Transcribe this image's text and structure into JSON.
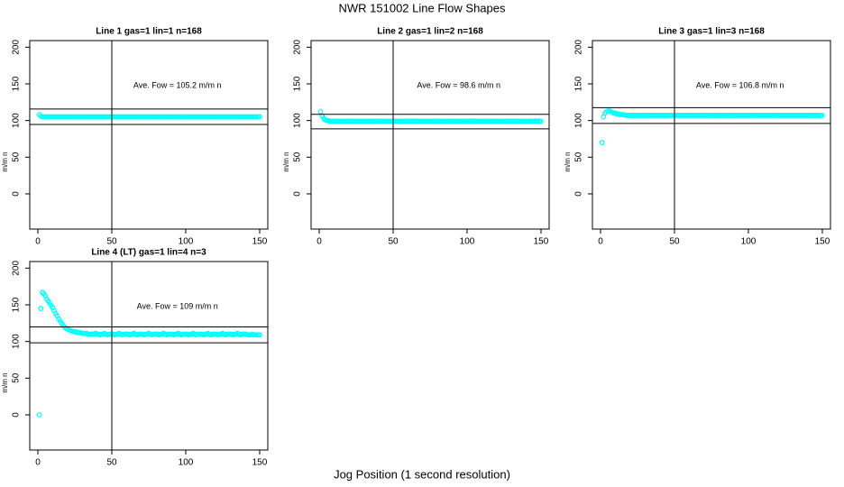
{
  "title": "NWR  151002  Line Flow Shapes",
  "x_label": "Jog Position (1 second resolution)",
  "chart_data": [
    {
      "type": "scatter",
      "title": "Line 1 gas=1 lin=1 n=168",
      "y_label": "m/m n",
      "annotation": "Ave. Fow =  105.2  m/m n",
      "color": "#00ffff",
      "xlim": [
        -5.5,
        155.5
      ],
      "ylim": [
        -48,
        209
      ],
      "xticks": [
        0,
        50,
        100,
        150
      ],
      "yticks": [
        0,
        50,
        100,
        150,
        200
      ],
      "hlines": [
        115.7,
        94.7
      ],
      "vline": 50,
      "x": [
        1,
        2,
        3,
        4,
        5,
        6,
        7,
        8,
        9,
        10,
        11,
        12,
        13,
        14,
        15,
        16,
        17,
        18,
        19,
        20,
        21,
        22,
        23,
        24,
        25,
        26,
        27,
        28,
        29,
        30,
        31,
        32,
        33,
        34,
        35,
        36,
        37,
        38,
        39,
        40,
        41,
        42,
        43,
        44,
        45,
        46,
        47,
        48,
        49,
        50,
        51,
        52,
        53,
        54,
        55,
        56,
        57,
        58,
        59,
        60,
        61,
        62,
        63,
        64,
        65,
        66,
        67,
        68,
        69,
        70,
        71,
        72,
        73,
        74,
        75,
        76,
        77,
        78,
        79,
        80,
        81,
        82,
        83,
        84,
        85,
        86,
        87,
        88,
        89,
        90,
        91,
        92,
        93,
        94,
        95,
        96,
        97,
        98,
        99,
        100,
        101,
        102,
        103,
        104,
        105,
        106,
        107,
        108,
        109,
        110,
        111,
        112,
        113,
        114,
        115,
        116,
        117,
        118,
        119,
        120,
        121,
        122,
        123,
        124,
        125,
        126,
        127,
        128,
        129,
        130,
        131,
        132,
        133,
        134,
        135,
        136,
        137,
        138,
        139,
        140,
        141,
        142,
        143,
        144,
        145,
        146,
        147,
        148,
        149,
        150
      ],
      "values": [
        108,
        106,
        105,
        105,
        105,
        105,
        105,
        105,
        105,
        105,
        105,
        105,
        105,
        105,
        105,
        105,
        105,
        105,
        105,
        105,
        105,
        105,
        105,
        105,
        105,
        105,
        105,
        105,
        105,
        105,
        105,
        105,
        105,
        105,
        105,
        105,
        105,
        105,
        105,
        105,
        105,
        105,
        105,
        105,
        105,
        105,
        105,
        105,
        105,
        105,
        105,
        105,
        105,
        105,
        105,
        105,
        105,
        105,
        105,
        105,
        105,
        105,
        105,
        105,
        105,
        105,
        105,
        105,
        105,
        105,
        105,
        105,
        105,
        105,
        105,
        105,
        105,
        105,
        105,
        105,
        105,
        105,
        105,
        105,
        105,
        105,
        105,
        105,
        105,
        105,
        105,
        105,
        105,
        105,
        105,
        105,
        105,
        105,
        105,
        105,
        105,
        105,
        105,
        105,
        105,
        105,
        105,
        105,
        105,
        105,
        105,
        105,
        105,
        105,
        105,
        105,
        105,
        105,
        105,
        105,
        105,
        105,
        105,
        105,
        105,
        105,
        105,
        105,
        105,
        105,
        105,
        105,
        105,
        105,
        105,
        105,
        105,
        105,
        105,
        105,
        105,
        105,
        105,
        105,
        105,
        105,
        105,
        105,
        105,
        105
      ]
    },
    {
      "type": "scatter",
      "title": "Line 2 gas=1 lin=2 n=168",
      "y_label": "m/m n",
      "annotation": "Ave. Fow =  98.6  m/m n",
      "color": "#00ffff",
      "xlim": [
        -5.5,
        155.5
      ],
      "ylim": [
        -48,
        209
      ],
      "xticks": [
        0,
        50,
        100,
        150
      ],
      "yticks": [
        0,
        50,
        100,
        150,
        200
      ],
      "hlines": [
        108.5,
        88.7
      ],
      "vline": 50,
      "x": [
        1,
        2,
        3,
        4,
        5,
        6,
        7,
        8,
        9,
        10,
        11,
        12,
        13,
        14,
        15,
        16,
        17,
        18,
        19,
        20,
        21,
        22,
        23,
        24,
        25,
        26,
        27,
        28,
        29,
        30,
        31,
        32,
        33,
        34,
        35,
        36,
        37,
        38,
        39,
        40,
        41,
        42,
        43,
        44,
        45,
        46,
        47,
        48,
        49,
        50,
        51,
        52,
        53,
        54,
        55,
        56,
        57,
        58,
        59,
        60,
        61,
        62,
        63,
        64,
        65,
        66,
        67,
        68,
        69,
        70,
        71,
        72,
        73,
        74,
        75,
        76,
        77,
        78,
        79,
        80,
        81,
        82,
        83,
        84,
        85,
        86,
        87,
        88,
        89,
        90,
        91,
        92,
        93,
        94,
        95,
        96,
        97,
        98,
        99,
        100,
        101,
        102,
        103,
        104,
        105,
        106,
        107,
        108,
        109,
        110,
        111,
        112,
        113,
        114,
        115,
        116,
        117,
        118,
        119,
        120,
        121,
        122,
        123,
        124,
        125,
        126,
        127,
        128,
        129,
        130,
        131,
        132,
        133,
        134,
        135,
        136,
        137,
        138,
        139,
        140,
        141,
        142,
        143,
        144,
        145,
        146,
        147,
        148,
        149,
        150
      ],
      "values": [
        112,
        106,
        103,
        101,
        100,
        100,
        99,
        99,
        99,
        99,
        99,
        99,
        99,
        99,
        99,
        99,
        99,
        99,
        99,
        99,
        99,
        99,
        99,
        99,
        99,
        99,
        99,
        99,
        99,
        99,
        99,
        99,
        99,
        99,
        99,
        99,
        99,
        99,
        99,
        99,
        99,
        99,
        99,
        99,
        99,
        99,
        99,
        99,
        99,
        99,
        99,
        99,
        99,
        99,
        99,
        99,
        99,
        99,
        99,
        99,
        99,
        99,
        99,
        99,
        99,
        99,
        99,
        99,
        99,
        99,
        99,
        99,
        99,
        99,
        99,
        99,
        99,
        99,
        99,
        99,
        99,
        99,
        99,
        99,
        99,
        99,
        99,
        99,
        99,
        99,
        99,
        99,
        99,
        99,
        99,
        99,
        99,
        99,
        99,
        99,
        99,
        99,
        99,
        99,
        99,
        99,
        99,
        99,
        99,
        99,
        99,
        99,
        99,
        99,
        99,
        99,
        99,
        99,
        99,
        99,
        99,
        99,
        99,
        99,
        99,
        99,
        99,
        99,
        99,
        99,
        99,
        99,
        99,
        99,
        99,
        99,
        99,
        99,
        99,
        99,
        99,
        99,
        99,
        99,
        99,
        99,
        99,
        99,
        99,
        99
      ]
    },
    {
      "type": "scatter",
      "title": "Line 3 gas=1 lin=3 n=168",
      "y_label": "m/m n",
      "annotation": "Ave. Fow =  106.8  m/m n",
      "color": "#00ffff",
      "xlim": [
        -5.5,
        155.5
      ],
      "ylim": [
        -48,
        209
      ],
      "xticks": [
        0,
        50,
        100,
        150
      ],
      "yticks": [
        0,
        50,
        100,
        150,
        200
      ],
      "hlines": [
        117.5,
        96.1
      ],
      "vline": 50,
      "x": [
        1,
        2,
        3,
        4,
        5,
        6,
        7,
        8,
        9,
        10,
        11,
        12,
        13,
        14,
        15,
        16,
        17,
        18,
        19,
        20,
        21,
        22,
        23,
        24,
        25,
        26,
        27,
        28,
        29,
        30,
        31,
        32,
        33,
        34,
        35,
        36,
        37,
        38,
        39,
        40,
        41,
        42,
        43,
        44,
        45,
        46,
        47,
        48,
        49,
        50,
        51,
        52,
        53,
        54,
        55,
        56,
        57,
        58,
        59,
        60,
        61,
        62,
        63,
        64,
        65,
        66,
        67,
        68,
        69,
        70,
        71,
        72,
        73,
        74,
        75,
        76,
        77,
        78,
        79,
        80,
        81,
        82,
        83,
        84,
        85,
        86,
        87,
        88,
        89,
        90,
        91,
        92,
        93,
        94,
        95,
        96,
        97,
        98,
        99,
        100,
        101,
        102,
        103,
        104,
        105,
        106,
        107,
        108,
        109,
        110,
        111,
        112,
        113,
        114,
        115,
        116,
        117,
        118,
        119,
        120,
        121,
        122,
        123,
        124,
        125,
        126,
        127,
        128,
        129,
        130,
        131,
        132,
        133,
        134,
        135,
        136,
        137,
        138,
        139,
        140,
        141,
        142,
        143,
        144,
        145,
        146,
        147,
        148,
        149,
        150
      ],
      "values": [
        70,
        105,
        110,
        112,
        113,
        113,
        112,
        111,
        110,
        110,
        109,
        109,
        108,
        108,
        108,
        108,
        107,
        107,
        107,
        107,
        107,
        107,
        107,
        107,
        107,
        107,
        107,
        107,
        107,
        107,
        107,
        107,
        107,
        107,
        107,
        107,
        107,
        107,
        107,
        107,
        107,
        107,
        107,
        107,
        107,
        107,
        107,
        107,
        107,
        107,
        107,
        107,
        107,
        107,
        107,
        107,
        107,
        107,
        107,
        107,
        107,
        107,
        107,
        107,
        107,
        107,
        107,
        107,
        107,
        107,
        107,
        107,
        107,
        107,
        107,
        107,
        107,
        107,
        107,
        107,
        107,
        107,
        107,
        107,
        107,
        107,
        107,
        107,
        107,
        107,
        107,
        107,
        107,
        107,
        107,
        107,
        107,
        107,
        107,
        107,
        107,
        107,
        107,
        107,
        107,
        107,
        107,
        107,
        107,
        107,
        107,
        107,
        107,
        107,
        107,
        107,
        107,
        107,
        107,
        107,
        107,
        107,
        107,
        107,
        107,
        107,
        107,
        107,
        107,
        107,
        107,
        107,
        107,
        107,
        107,
        107,
        107,
        107,
        107,
        107,
        107,
        107,
        107,
        107,
        107,
        107,
        107,
        107,
        107,
        107
      ]
    },
    {
      "type": "scatter",
      "title": "Line 4 (LT) gas=1 lin=4 n=3",
      "y_label": "m/m n",
      "annotation": "Ave. Fow =  109  m/m n",
      "color": "#00ffff",
      "xlim": [
        -5.5,
        155.5
      ],
      "ylim": [
        -48,
        209
      ],
      "xticks": [
        0,
        50,
        100,
        150
      ],
      "yticks": [
        0,
        50,
        100,
        150,
        200
      ],
      "hlines": [
        119.9,
        98.1
      ],
      "vline": 50,
      "x": [
        1,
        2,
        3,
        4,
        5,
        6,
        7,
        8,
        9,
        10,
        11,
        12,
        13,
        14,
        15,
        16,
        17,
        18,
        19,
        20,
        21,
        22,
        23,
        24,
        25,
        26,
        27,
        28,
        29,
        30,
        31,
        32,
        33,
        34,
        35,
        36,
        37,
        38,
        39,
        40,
        41,
        42,
        43,
        44,
        45,
        46,
        47,
        48,
        49,
        50,
        51,
        52,
        53,
        54,
        55,
        56,
        57,
        58,
        59,
        60,
        61,
        62,
        63,
        64,
        65,
        66,
        67,
        68,
        69,
        70,
        71,
        72,
        73,
        74,
        75,
        76,
        77,
        78,
        79,
        80,
        81,
        82,
        83,
        84,
        85,
        86,
        87,
        88,
        89,
        90,
        91,
        92,
        93,
        94,
        95,
        96,
        97,
        98,
        99,
        100,
        101,
        102,
        103,
        104,
        105,
        106,
        107,
        108,
        109,
        110,
        111,
        112,
        113,
        114,
        115,
        116,
        117,
        118,
        119,
        120,
        121,
        122,
        123,
        124,
        125,
        126,
        127,
        128,
        129,
        130,
        131,
        132,
        133,
        134,
        135,
        136,
        137,
        138,
        139,
        140,
        141,
        142,
        143,
        144,
        145,
        146,
        147,
        148,
        149,
        150
      ],
      "values": [
        0,
        145,
        167,
        165,
        162,
        158,
        155,
        152,
        149,
        146,
        142,
        138,
        135,
        131,
        128,
        125,
        122,
        120,
        118,
        117,
        116,
        115,
        114,
        114,
        113,
        113,
        112,
        112,
        112,
        111,
        111,
        111,
        111,
        110,
        110,
        110,
        110,
        110,
        111,
        110,
        110,
        109,
        110,
        110,
        111,
        110,
        109,
        110,
        110,
        110,
        110,
        109,
        110,
        110,
        111,
        110,
        109,
        110,
        110,
        110,
        110,
        109,
        110,
        110,
        111,
        110,
        109,
        110,
        110,
        110,
        110,
        109,
        110,
        110,
        111,
        110,
        109,
        110,
        110,
        110,
        110,
        109,
        110,
        110,
        111,
        110,
        109,
        110,
        110,
        110,
        110,
        109,
        110,
        110,
        111,
        110,
        109,
        110,
        110,
        110,
        110,
        109,
        110,
        110,
        111,
        110,
        109,
        110,
        110,
        110,
        110,
        109,
        110,
        110,
        111,
        110,
        109,
        110,
        110,
        110,
        110,
        109,
        110,
        110,
        111,
        110,
        109,
        110,
        110,
        110,
        110,
        109,
        110,
        110,
        111,
        110,
        109,
        110,
        110,
        110,
        110,
        109,
        109,
        109,
        110,
        109,
        109,
        109,
        109,
        109
      ]
    }
  ]
}
